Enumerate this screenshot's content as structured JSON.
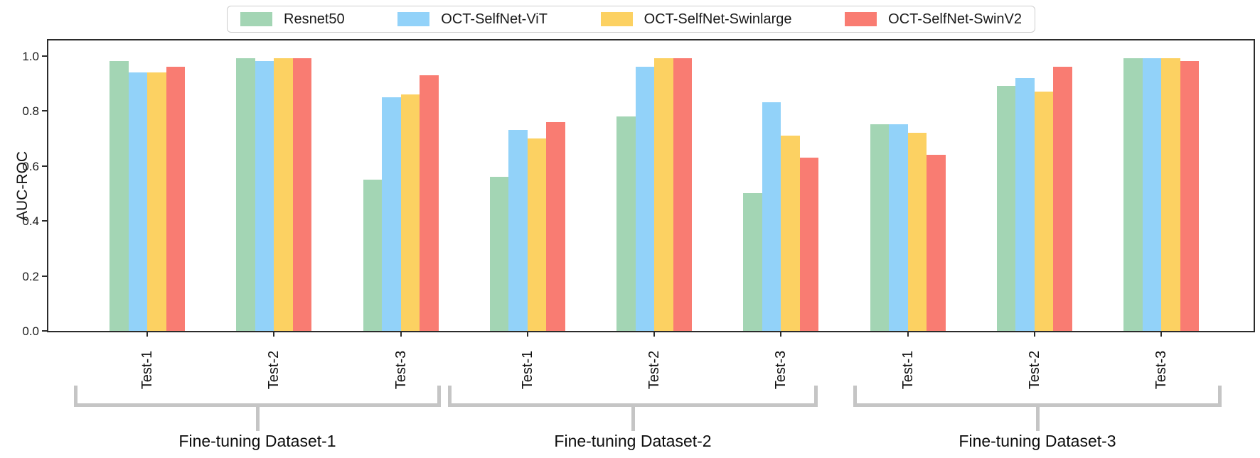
{
  "chart_data": {
    "type": "bar",
    "ylabel": "AUC-ROC",
    "xlabel": "",
    "title": "",
    "ylim": [
      0.0,
      1.05
    ],
    "yticks": [
      "0.0",
      "0.2",
      "0.4",
      "0.6",
      "0.8",
      "1.0"
    ],
    "ytick_values": [
      0.0,
      0.2,
      0.4,
      0.6,
      0.8,
      1.0
    ],
    "grid": false,
    "legend_position": "top-center",
    "categories": [
      "Test-1",
      "Test-2",
      "Test-3",
      "Test-1",
      "Test-2",
      "Test-3",
      "Test-1",
      "Test-2",
      "Test-3"
    ],
    "group_brackets": [
      {
        "label": "Fine-tuning Dataset-1",
        "from_category_index": 0,
        "to_category_index": 2
      },
      {
        "label": "Fine-tuning Dataset-2",
        "from_category_index": 3,
        "to_category_index": 5
      },
      {
        "label": "Fine-tuning Dataset-3",
        "from_category_index": 6,
        "to_category_index": 8
      }
    ],
    "series": [
      {
        "name": "Resnet50",
        "color": "#a3d5b4",
        "values": [
          0.98,
          0.99,
          0.55,
          0.56,
          0.78,
          0.5,
          0.75,
          0.89,
          0.99
        ]
      },
      {
        "name": "OCT-SelfNet-ViT",
        "color": "#92d2f9",
        "values": [
          0.94,
          0.98,
          0.85,
          0.73,
          0.96,
          0.83,
          0.75,
          0.92,
          0.99
        ]
      },
      {
        "name": "OCT-SelfNet-Swinlarge",
        "color": "#fcd162",
        "values": [
          0.94,
          0.99,
          0.86,
          0.7,
          0.99,
          0.71,
          0.72,
          0.87,
          0.99
        ]
      },
      {
        "name": "OCT-SelfNet-SwinV2",
        "color": "#f97c72",
        "values": [
          0.96,
          0.99,
          0.93,
          0.76,
          0.99,
          0.63,
          0.64,
          0.96,
          0.98
        ]
      }
    ],
    "colors": {
      "spine": "#2b2b2b",
      "bracket": "#c5c5c5"
    }
  }
}
